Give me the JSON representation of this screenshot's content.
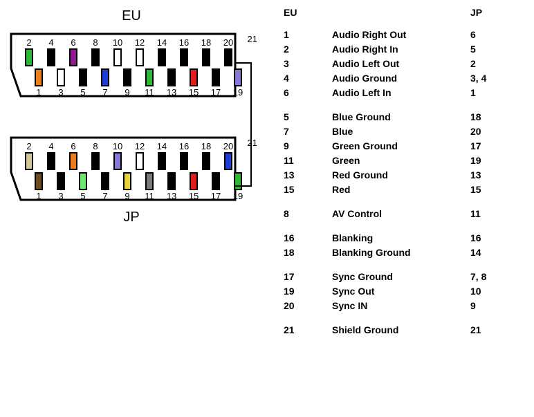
{
  "labels": {
    "eu": "EU",
    "jp": "JP"
  },
  "connectors": {
    "eu": {
      "top": [
        {
          "n": "2",
          "c": "#2fb835"
        },
        {
          "n": "4",
          "c": "#000000"
        },
        {
          "n": "6",
          "c": "#8d1b8f"
        },
        {
          "n": "8",
          "c": "#000000"
        },
        {
          "n": "10",
          "c": "#ffffff"
        },
        {
          "n": "12",
          "c": "#ffffff"
        },
        {
          "n": "14",
          "c": "#000000"
        },
        {
          "n": "16",
          "c": "#000000"
        },
        {
          "n": "18",
          "c": "#000000"
        },
        {
          "n": "20",
          "c": "#000000"
        }
      ],
      "bottom": [
        {
          "n": "1",
          "c": "#ed7d1a"
        },
        {
          "n": "3",
          "c": "#ffffff"
        },
        {
          "n": "5",
          "c": "#000000"
        },
        {
          "n": "7",
          "c": "#1e3fd6"
        },
        {
          "n": "9",
          "c": "#000000"
        },
        {
          "n": "11",
          "c": "#2fb835"
        },
        {
          "n": "13",
          "c": "#000000"
        },
        {
          "n": "15",
          "c": "#e21b1b"
        },
        {
          "n": "17",
          "c": "#000000"
        },
        {
          "n": "19",
          "c": "#8a78d6"
        }
      ],
      "pin21": "21"
    },
    "jp": {
      "top": [
        {
          "n": "2",
          "c": "#d6c49a"
        },
        {
          "n": "4",
          "c": "#000000"
        },
        {
          "n": "6",
          "c": "#ed7d1a"
        },
        {
          "n": "8",
          "c": "#000000"
        },
        {
          "n": "10",
          "c": "#8a78d6"
        },
        {
          "n": "12",
          "c": "#ffffff"
        },
        {
          "n": "14",
          "c": "#000000"
        },
        {
          "n": "16",
          "c": "#000000"
        },
        {
          "n": "18",
          "c": "#000000"
        },
        {
          "n": "20",
          "c": "#1e3fd6"
        }
      ],
      "bottom": [
        {
          "n": "1",
          "c": "#6e4a1f"
        },
        {
          "n": "3",
          "c": "#000000"
        },
        {
          "n": "5",
          "c": "#6ee86e"
        },
        {
          "n": "7",
          "c": "#000000"
        },
        {
          "n": "9",
          "c": "#e8d23a"
        },
        {
          "n": "11",
          "c": "#7a7a7a"
        },
        {
          "n": "13",
          "c": "#000000"
        },
        {
          "n": "15",
          "c": "#e21b1b"
        },
        {
          "n": "17",
          "c": "#000000"
        },
        {
          "n": "19",
          "c": "#2fb835"
        }
      ],
      "pin21": "21"
    }
  },
  "table": {
    "headers": {
      "eu": "EU",
      "jp": "JP"
    },
    "groups": [
      [
        {
          "eu": "1",
          "sig": "Audio Right Out",
          "jp": "6"
        },
        {
          "eu": "2",
          "sig": "Audio Right In",
          "jp": "5"
        },
        {
          "eu": "3",
          "sig": "Audio Left Out",
          "jp": "2"
        },
        {
          "eu": "4",
          "sig": "Audio Ground",
          "jp": "3, 4"
        },
        {
          "eu": "6",
          "sig": "Audio Left In",
          "jp": "1"
        }
      ],
      [
        {
          "eu": "5",
          "sig": "Blue Ground",
          "jp": "18"
        },
        {
          "eu": "7",
          "sig": "Blue",
          "jp": "20"
        },
        {
          "eu": "9",
          "sig": "Green Ground",
          "jp": "17"
        },
        {
          "eu": "11",
          "sig": "Green",
          "jp": "19"
        },
        {
          "eu": "13",
          "sig": "Red Ground",
          "jp": "13"
        },
        {
          "eu": "15",
          "sig": "Red",
          "jp": "15"
        }
      ],
      [
        {
          "eu": "8",
          "sig": "AV Control",
          "jp": "11"
        }
      ],
      [
        {
          "eu": "16",
          "sig": "Blanking",
          "jp": "16"
        },
        {
          "eu": "18",
          "sig": "Blanking Ground",
          "jp": "14"
        }
      ],
      [
        {
          "eu": "17",
          "sig": "Sync Ground",
          "jp": "7, 8"
        },
        {
          "eu": "19",
          "sig": "Sync Out",
          "jp": "10"
        },
        {
          "eu": "20",
          "sig": "Sync IN",
          "jp": "9"
        }
      ],
      [
        {
          "eu": "21",
          "sig": "Shield Ground",
          "jp": "21"
        }
      ]
    ]
  }
}
